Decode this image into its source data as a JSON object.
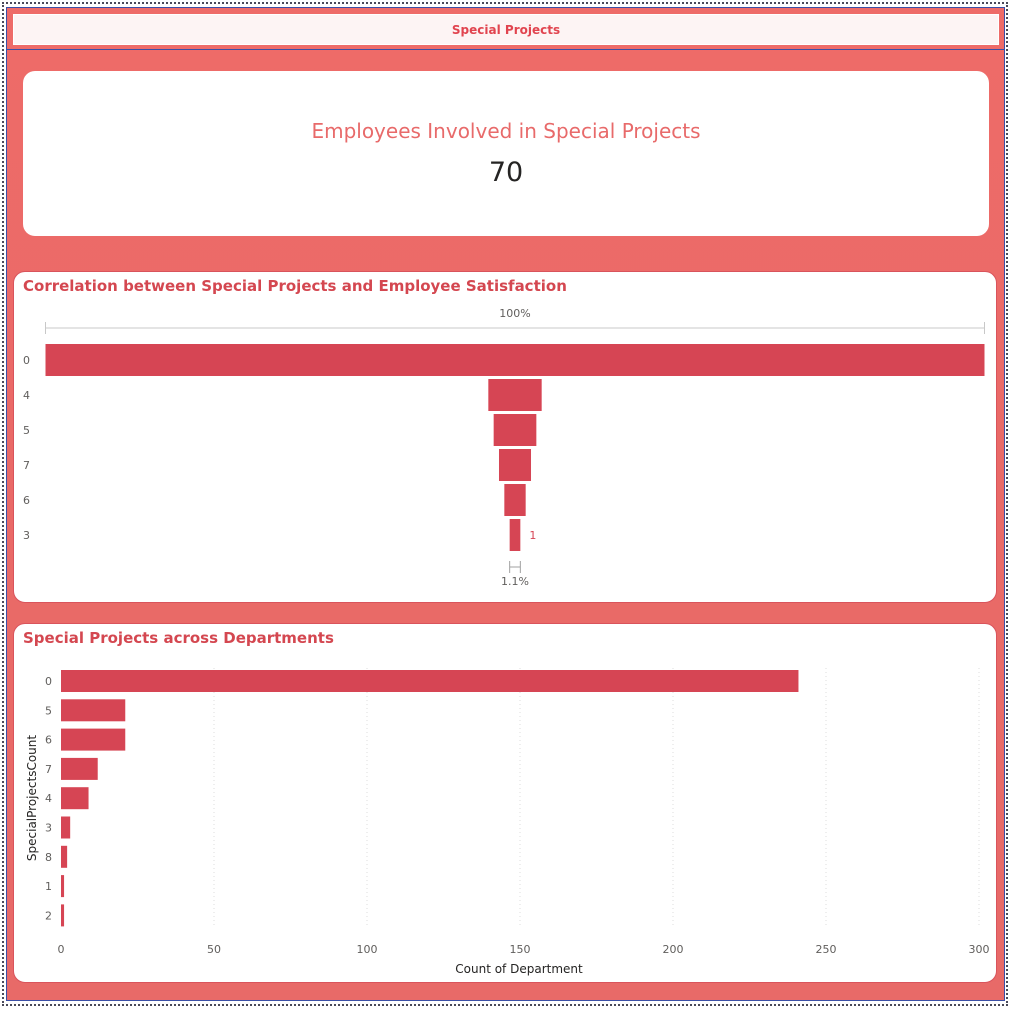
{
  "page": {
    "title": "Special Projects"
  },
  "kpi": {
    "label": "Employees Involved in Special Projects",
    "value": "70"
  },
  "funnel": {
    "title": "Correlation between Special Projects and Employee Satisfaction",
    "top_percent_label": "100%",
    "bottom_percent_label": "1.1%",
    "last_value_label": "1"
  },
  "bars": {
    "title": "Special Projects across Departments",
    "xlabel": "Count of Department",
    "ylabel": "SpecialProjectsCount"
  },
  "chart_data": [
    {
      "type": "bar",
      "orientation": "funnel",
      "title": "Correlation between Special Projects and Employee Satisfaction",
      "categories": [
        "0",
        "4",
        "5",
        "7",
        "6",
        "3"
      ],
      "values": [
        88,
        5,
        4,
        3,
        2,
        1
      ],
      "annotations": [
        "100%",
        "1.1%",
        "1"
      ]
    },
    {
      "type": "bar",
      "orientation": "horizontal",
      "title": "Special Projects across Departments",
      "categories": [
        "0",
        "5",
        "6",
        "7",
        "4",
        "3",
        "8",
        "1",
        "2"
      ],
      "values": [
        241,
        21,
        21,
        12,
        9,
        3,
        2,
        1,
        1
      ],
      "xlabel": "Count of Department",
      "ylabel": "SpecialProjectsCount",
      "xlim": [
        0,
        300
      ],
      "xticks": [
        "0",
        "50",
        "100",
        "150",
        "200",
        "250",
        "300"
      ],
      "grid": true
    }
  ],
  "colors": {
    "bar": "#d64554",
    "background": "#ee6b68",
    "title": "#d44750"
  }
}
